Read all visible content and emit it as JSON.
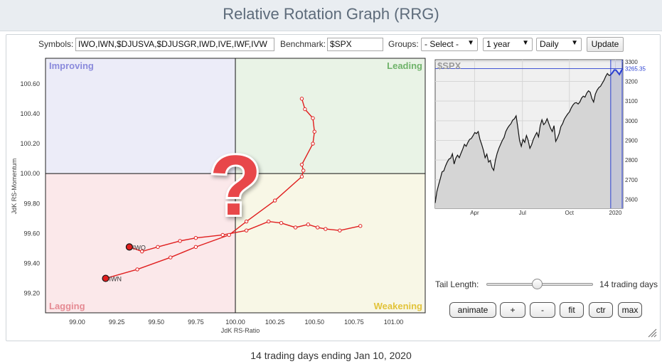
{
  "title": "Relative Rotation Graph (RRG)",
  "toolbar": {
    "symbols_label": "Symbols:",
    "symbols_value": "IWO,IWN,$DJUSVA,$DJUSGR,IWD,IVE,IWF,IVW",
    "benchmark_label": "Benchmark:",
    "benchmark_value": "$SPX",
    "groups_label": "Groups:",
    "groups_value": "- Select -",
    "period_value": "1 year",
    "frequency_value": "Daily",
    "update_label": "Update"
  },
  "colors": {
    "improving_bg": "#ececf8",
    "leading_bg": "#e9f3e6",
    "lagging_bg": "#fbe8ea",
    "weakening_bg": "#f8f7e6",
    "improving_text": "#8a8adc",
    "leading_text": "#6fb36a",
    "lagging_text": "#e58a93",
    "weakening_text": "#e2c33a",
    "tail": "#e01e1e",
    "benchmark_line": "#111111",
    "benchmark_highlight": "#2a3fd1"
  },
  "chart_data": [
    {
      "type": "scatter",
      "xlabel": "JdK RS-Ratio",
      "ylabel": "JdK RS-Momentum",
      "xlim": [
        98.8,
        101.2
      ],
      "ylim": [
        99.07,
        100.77
      ],
      "xticks": [
        "99.00",
        "99.25",
        "99.50",
        "99.75",
        "100.00",
        "100.25",
        "100.50",
        "100.75",
        "101.00"
      ],
      "yticks": [
        "99.20",
        "99.40",
        "99.60",
        "99.80",
        "100.00",
        "100.20",
        "100.40",
        "100.60"
      ],
      "quadrants": {
        "improving": "Improving",
        "leading": "Leading",
        "lagging": "Lagging",
        "weakening": "Weakening"
      },
      "grid": false,
      "overlay_glyph": "?",
      "series": [
        {
          "name": "IWO",
          "x": [
            100.79,
            100.66,
            100.57,
            100.52,
            100.46,
            100.38,
            100.29,
            100.21,
            100.07,
            99.92,
            99.75,
            99.65,
            99.51,
            99.41,
            99.33
          ],
          "y": [
            99.65,
            99.62,
            99.63,
            99.64,
            99.66,
            99.64,
            99.67,
            99.68,
            99.62,
            99.59,
            99.57,
            99.55,
            99.51,
            99.48,
            99.51
          ]
        },
        {
          "name": "IWN",
          "x": [
            100.42,
            100.44,
            100.49,
            100.5,
            100.49,
            100.42,
            100.43,
            100.42,
            100.25,
            100.07,
            99.96,
            99.75,
            99.59,
            99.38,
            99.18
          ],
          "y": [
            100.5,
            100.43,
            100.37,
            100.28,
            100.2,
            100.06,
            100.02,
            99.98,
            99.82,
            99.68,
            99.59,
            99.51,
            99.44,
            99.36,
            99.3
          ]
        }
      ]
    },
    {
      "type": "line",
      "title": "$SPX",
      "x_ticks": [
        "Apr",
        "Jul",
        "Oct",
        "2020"
      ],
      "y_ticks": [
        "2600",
        "2700",
        "2800",
        "2900",
        "3000",
        "3100",
        "3200",
        "3300"
      ],
      "ylim": [
        2555,
        3310
      ],
      "last_value": "3265.35",
      "series": [
        {
          "name": "$SPX",
          "y": [
            2582,
            2640,
            2675,
            2706,
            2740,
            2745,
            2770,
            2790,
            2805,
            2810,
            2832,
            2780,
            2810,
            2825,
            2812,
            2835,
            2856,
            2880,
            2870,
            2890,
            2905,
            2910,
            2924,
            2940,
            2935,
            2945,
            2905,
            2880,
            2850,
            2812,
            2830,
            2790,
            2798,
            2762,
            2748,
            2800,
            2835,
            2860,
            2880,
            2900,
            2915,
            2945,
            2962,
            2975,
            2985,
            3003,
            3010,
            3025,
            2965,
            2900,
            2870,
            2905,
            2890,
            2925,
            2900,
            2860,
            2878,
            2905,
            2924,
            2940,
            2918,
            2975,
            3005,
            2980,
            2990,
            3010,
            2985,
            2962,
            2945,
            2975,
            2895,
            2912,
            2935,
            2970,
            2985,
            3008,
            3022,
            3035,
            3045,
            3065,
            3080,
            3090,
            3092,
            3085,
            3095,
            3115,
            3125,
            3120,
            3140,
            3152,
            3145,
            3113,
            3095,
            3135,
            3155,
            3168,
            3175,
            3190,
            3205,
            3225,
            3240,
            3230,
            3234,
            3245,
            3258,
            3257,
            3246,
            3235,
            3253,
            3265
          ]
        }
      ]
    }
  ],
  "tail": {
    "label": "Tail Length:",
    "value_text": "14 trading days",
    "fraction": 0.47
  },
  "buttons": {
    "animate": "animate",
    "plus": "+",
    "minus": "-",
    "fit": "fit",
    "ctr": "ctr",
    "max": "max"
  },
  "footer": "14 trading days ending Jan 10, 2020"
}
